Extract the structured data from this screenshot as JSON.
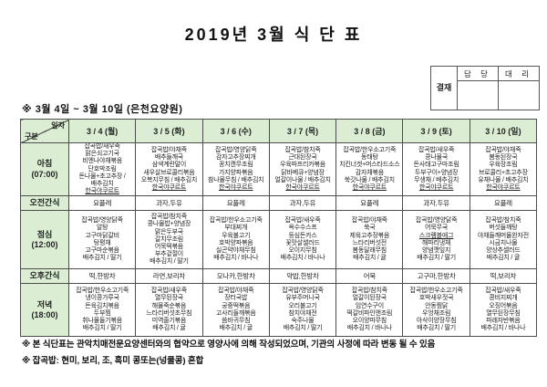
{
  "title": "2019년 3월 식 단 표",
  "approval": {
    "stamp": "결재",
    "manager": "담 당",
    "deputy": "대 리"
  },
  "subtitle": "※  3월 4일  ~  3월 10일  (은천요양원)",
  "table": {
    "corner": {
      "top": "일자",
      "bottom": "구분"
    },
    "dates": [
      "3 / 4 (월)",
      "3 / 5 (화)",
      "3 / 6 (수)",
      "3 / 7 (목)",
      "3 / 8 (금)",
      "3 / 9 (토)",
      "3 / 10 (일)"
    ],
    "rows": [
      {
        "label": "아침",
        "time": "(07:00)",
        "type": "meal",
        "cells": [
          [
            "잡곡밥/새우죽",
            "맑은쇠고기국",
            "비엔나야채볶음",
            "단호박조림",
            "돈나물+초고추장 /",
            "배추김치",
            "한국야쿠르트"
          ],
          [
            "잡곡밥/야채죽",
            "배추들깨국",
            "삼색계란말이",
            "새우살브로콜리볶음",
            "오복지무침 / 배추김치",
            "한국야쿠르트"
          ],
          [
            "잡곡밥/영양닭죽",
            "감자고추장찌개",
            "꽁치캔무조림",
            "가지양파볶음",
            "참나물무침 / 배추김치",
            "한국야쿠르트"
          ],
          [
            "잡곡밥/참치죽",
            "근대된장국",
            "우육파프리카볶음",
            "닭바베큐+양념장",
            "얼갈이나물 / 배추김치",
            "한국야쿠르트"
          ],
          [
            "잡곡밥/한우소고기죽",
            "동태탕",
            "치킨너겟+머스타드소스",
            "감자채볶음",
            "쑥갓나물 / 배추김치",
            "한국야쿠르트"
          ],
          [
            "잡곡밥/새우죽",
            "콩나물국",
            "돈사태고구마조림",
            "두부구이+양념장",
            "무생채 / 배추김치",
            "한국야쿠르트"
          ],
          [
            "잡곡밥/야채죽",
            "봄동된장국",
            "우육장조림",
            "브로콜리+초고추장",
            "유채나물 / 배추김치",
            "한국야쿠르트"
          ]
        ]
      },
      {
        "label": "오전간식",
        "time": "",
        "type": "snack",
        "cells": [
          "요플레",
          "과자,두유",
          "요플레",
          "과자,두유",
          "요플레",
          "과자,두유",
          "요플레"
        ]
      },
      {
        "label": "점심",
        "time": "(12:00)",
        "type": "meal",
        "cells": [
          [
            "잡곡밥/영양닭죽",
            "알탕",
            "고구마닭갈비",
            "탕평채",
            "고구마순볶음",
            "배추김치 / 딸기"
          ],
          [
            "잡곡밥/참치죽",
            "콩나물밥+양념장",
            "맑은두부국",
            "갈치무조림",
            "어묵떡볶음",
            "부추겉절이",
            "배추김치 / 딸기"
          ],
          [
            "잡곡밥/한우소고기죽",
            "부대찌개",
            "우육불고기",
            "호박양파볶음",
            "실곤약야채무침",
            "배추김치 / 바나나"
          ],
          [
            "잡곡밥/새우죽",
            "옥수수스프",
            "등심돈카스",
            "꽃맛살샐러드",
            "오이지무침",
            "배추김치 / 바나나"
          ],
          [
            "잡곡밥/야채죽",
            "쑥국",
            "제육고추장볶음",
            "느타리버섯전",
            "봄동달래무침",
            "배추김치 / 귤"
          ],
          [
            "잡곡밥/영양닭죽",
            "어묵무국",
            "스크램블에그",
            "해파리냉채",
            "양념깻잎지",
            "배추김치 / 딸기"
          ],
          [
            "잡곡밥/참치죽",
            "버섯들깨탕",
            "야채들깨머물완자전",
            "시금치나물",
            "양상추샐러드",
            "배추김치 / 귤"
          ]
        ]
      },
      {
        "label": "오후간식",
        "time": "",
        "type": "snack",
        "cells": [
          "떡,한방차",
          "라면,보리차",
          "모나카,한방차",
          "약밥,한방차",
          "어묵",
          "고구마,한방차",
          "떡,보리차"
        ]
      },
      {
        "label": "저녁",
        "time": "(18:00)",
        "type": "meal",
        "cells": [
          [
            "잡곡밥/한우소고기죽",
            "냉이콩가루국",
            "돈육김치볶음",
            "두부찜",
            "취나물들기볶음",
            "배추김치 / 딸기"
          ],
          [
            "잡곡밥/새우죽",
            "열무된장국",
            "해물죽순볶음",
            "느타리버섯초무침",
            "미역줄기볶음",
            "배추김치 / 귤"
          ],
          [
            "잡곡밥/야채죽",
            "장터국밥",
            "궁중떡볶음",
            "고사리들깨볶음",
            "씀바귀무침",
            "배추김치 / 귤"
          ],
          [
            "잡곡밥/영양닭죽",
            "유부주머니국",
            "오리불고기",
            "참치야채전",
            "숙주나물",
            "배추김치 / 딸기"
          ],
          [
            "잡곡밥/참치죽",
            "얼갈이된장국",
            "임연수구이",
            "떡갈비파인앤조림",
            "오이양파무침",
            "배추김치 / 바나나"
          ],
          [
            "잡곡밥/한우소고기죽",
            "호박새우젓국",
            "안동찜닭",
            "우엉채조림",
            "아삭이양장무침",
            "배추김치 / 딸기"
          ],
          [
            "잡곡밥/새우죽",
            "콩비지찌개",
            "오징어볶음",
            "열무된장무침",
            "파래자반볶음",
            "배추김치 / 바나나"
          ]
        ]
      }
    ]
  },
  "underlined_items": [
    "한국야쿠르트",
    "스크램블에그"
  ],
  "notes": [
    "※  본 식단표는 관악치매전문요양센터와의 협약으로 영양사에 의해 작성되었으며, 기관의 사정에 따라 변동 될 수 있음",
    "※  잡곡밥: 현미, 보리, 조, 흑미 콩또는(넝쿨콩) 혼합"
  ],
  "colors": {
    "header_green": "#dbeed3",
    "border": "#4d4d4d"
  }
}
